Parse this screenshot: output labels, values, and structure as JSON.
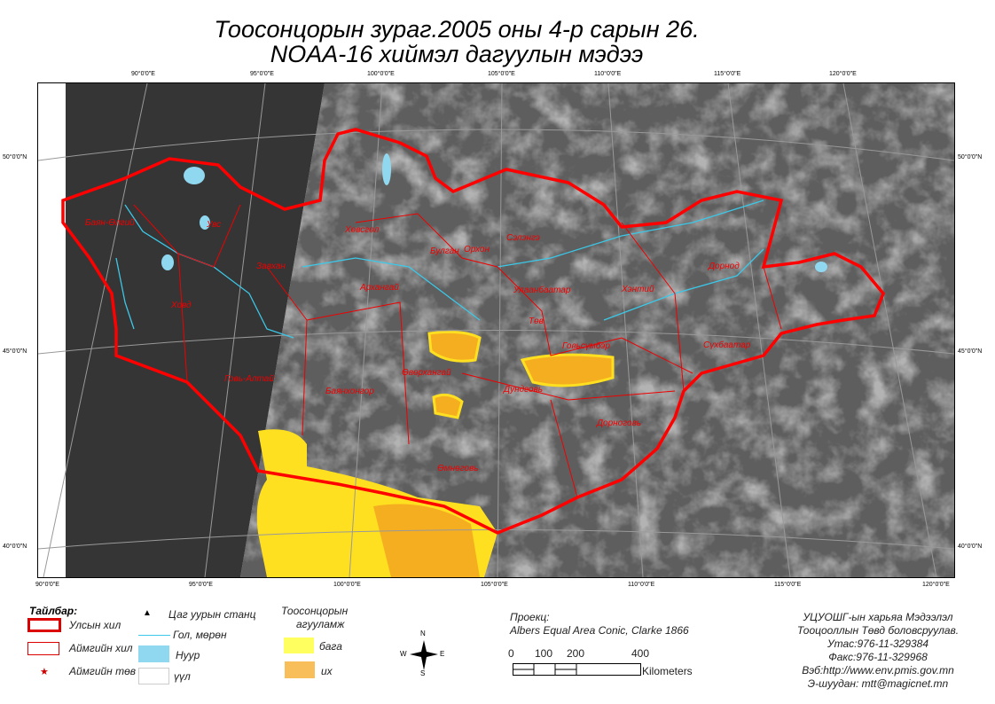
{
  "title": {
    "line1": "Тоосонцорын зураг.2005 оны 4-р сарын 26.",
    "line2": "NOAA-16 хиймэл дагуулын мэдээ"
  },
  "graticule": {
    "top": [
      "90°0'0\"E",
      "95°0'0\"E",
      "100°0'0\"E",
      "105°0'0\"E",
      "110°0'0\"E",
      "115°0'0\"E",
      "120°0'0\"E"
    ],
    "bottom": [
      "90°0'0\"E",
      "95°0'0\"E",
      "100°0'0\"E",
      "105°0'0\"E",
      "110°0'0\"E",
      "115°0'0\"E",
      "120°0'0\"E"
    ],
    "lat": [
      "50°0'0\"N",
      "45°0'0\"N",
      "40°0'0\"N"
    ]
  },
  "provinces": [
    "Баян-Өлгий",
    "Увс",
    "Завхан",
    "Ховд",
    "Говь-Алтай",
    "Хөвсгөл",
    "Архангай",
    "Баянхонгор",
    "Булган",
    "Орхон",
    "Сэлэнгэ",
    "Улаанбаатар",
    "Төв",
    "Хэнтий",
    "Дорнод",
    "Сүхбаатар",
    "Говьсүмбэр",
    "Өвөрхангай",
    "Дундговь",
    "Дорноговь",
    "Өмнөговь"
  ],
  "legend": {
    "title": "Тайлбар:",
    "national_border": "Улсын хил",
    "aimag_border": "Аймгийн хил",
    "aimag_center": "Аймгийн төв",
    "station": "Цаг уурын станц",
    "river": "Гол, мөрөн",
    "lake": "Нуур",
    "cloud": "үүл",
    "dust_title_1": "Тоосонцорын",
    "dust_title_2": "агууламж",
    "low": "бага",
    "high": "их"
  },
  "colors": {
    "border": "#e00000",
    "river": "#3cc8e8",
    "lake": "#90d8f0",
    "low": "#ffff60",
    "high": "#f7be5a"
  },
  "compass": {
    "n": "N",
    "s": "S",
    "e": "E",
    "w": "W"
  },
  "projection": {
    "label": "Проекц:",
    "value": "Albers Equal Area Conic, Clarke 1866"
  },
  "scalebar": {
    "ticks": [
      "0",
      "100",
      "200",
      "400"
    ],
    "unit": "Kilometers"
  },
  "credits": [
    "УЦУОШГ-ын харьяа Мэдээлэл",
    "Тооцооллын Төвд боловсруулав.",
    "Утас:976-11-329384",
    "Факс:976-11-329968",
    "Вэб:http://www.env.pmis.gov.mn",
    "Э-шуудан: mtt@magicnet.mn"
  ]
}
